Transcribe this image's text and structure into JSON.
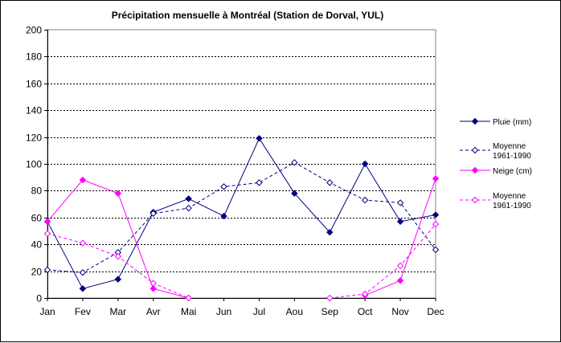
{
  "chart_data": {
    "type": "line",
    "title": "Précipitation mensuelle à Montréal (Station de Dorval, YUL)",
    "xlabel": "",
    "ylabel": "",
    "categories": [
      "Jan",
      "Fev",
      "Mar",
      "Avr",
      "Mai",
      "Jun",
      "Jul",
      "Aou",
      "Sep",
      "Oct",
      "Nov",
      "Dec"
    ],
    "ylim": [
      0,
      200
    ],
    "yticks": [
      0,
      20,
      40,
      60,
      80,
      100,
      120,
      140,
      160,
      180,
      200
    ],
    "grid": true,
    "legend_position": "right",
    "series": [
      {
        "name": "Pluie (mm)",
        "color": "#000080",
        "style": "solid",
        "marker": "filled-diamond",
        "values": [
          57,
          7,
          14,
          64,
          74,
          61,
          119,
          78,
          49,
          100,
          57,
          62
        ]
      },
      {
        "name": "Moyenne 1961-1990",
        "name_lines": [
          "Moyenne",
          "1961-1990"
        ],
        "color": "#000080",
        "style": "dashed",
        "marker": "open-diamond",
        "values": [
          21,
          19,
          34,
          63,
          67,
          83,
          86,
          101,
          86,
          73,
          71,
          36
        ]
      },
      {
        "name": "Neige (cm)",
        "color": "#ff00ff",
        "style": "solid",
        "marker": "filled-diamond",
        "values": [
          57,
          88,
          78,
          7,
          0,
          null,
          null,
          null,
          null,
          2,
          13,
          89
        ]
      },
      {
        "name": "Moyenne 1961-1990",
        "name_lines": [
          "Moyenne",
          "1961-1990"
        ],
        "color": "#ff00ff",
        "style": "dashed",
        "marker": "open-diamond",
        "values": [
          48,
          41,
          31,
          11,
          0,
          null,
          null,
          null,
          0,
          3,
          24,
          55
        ]
      }
    ]
  }
}
